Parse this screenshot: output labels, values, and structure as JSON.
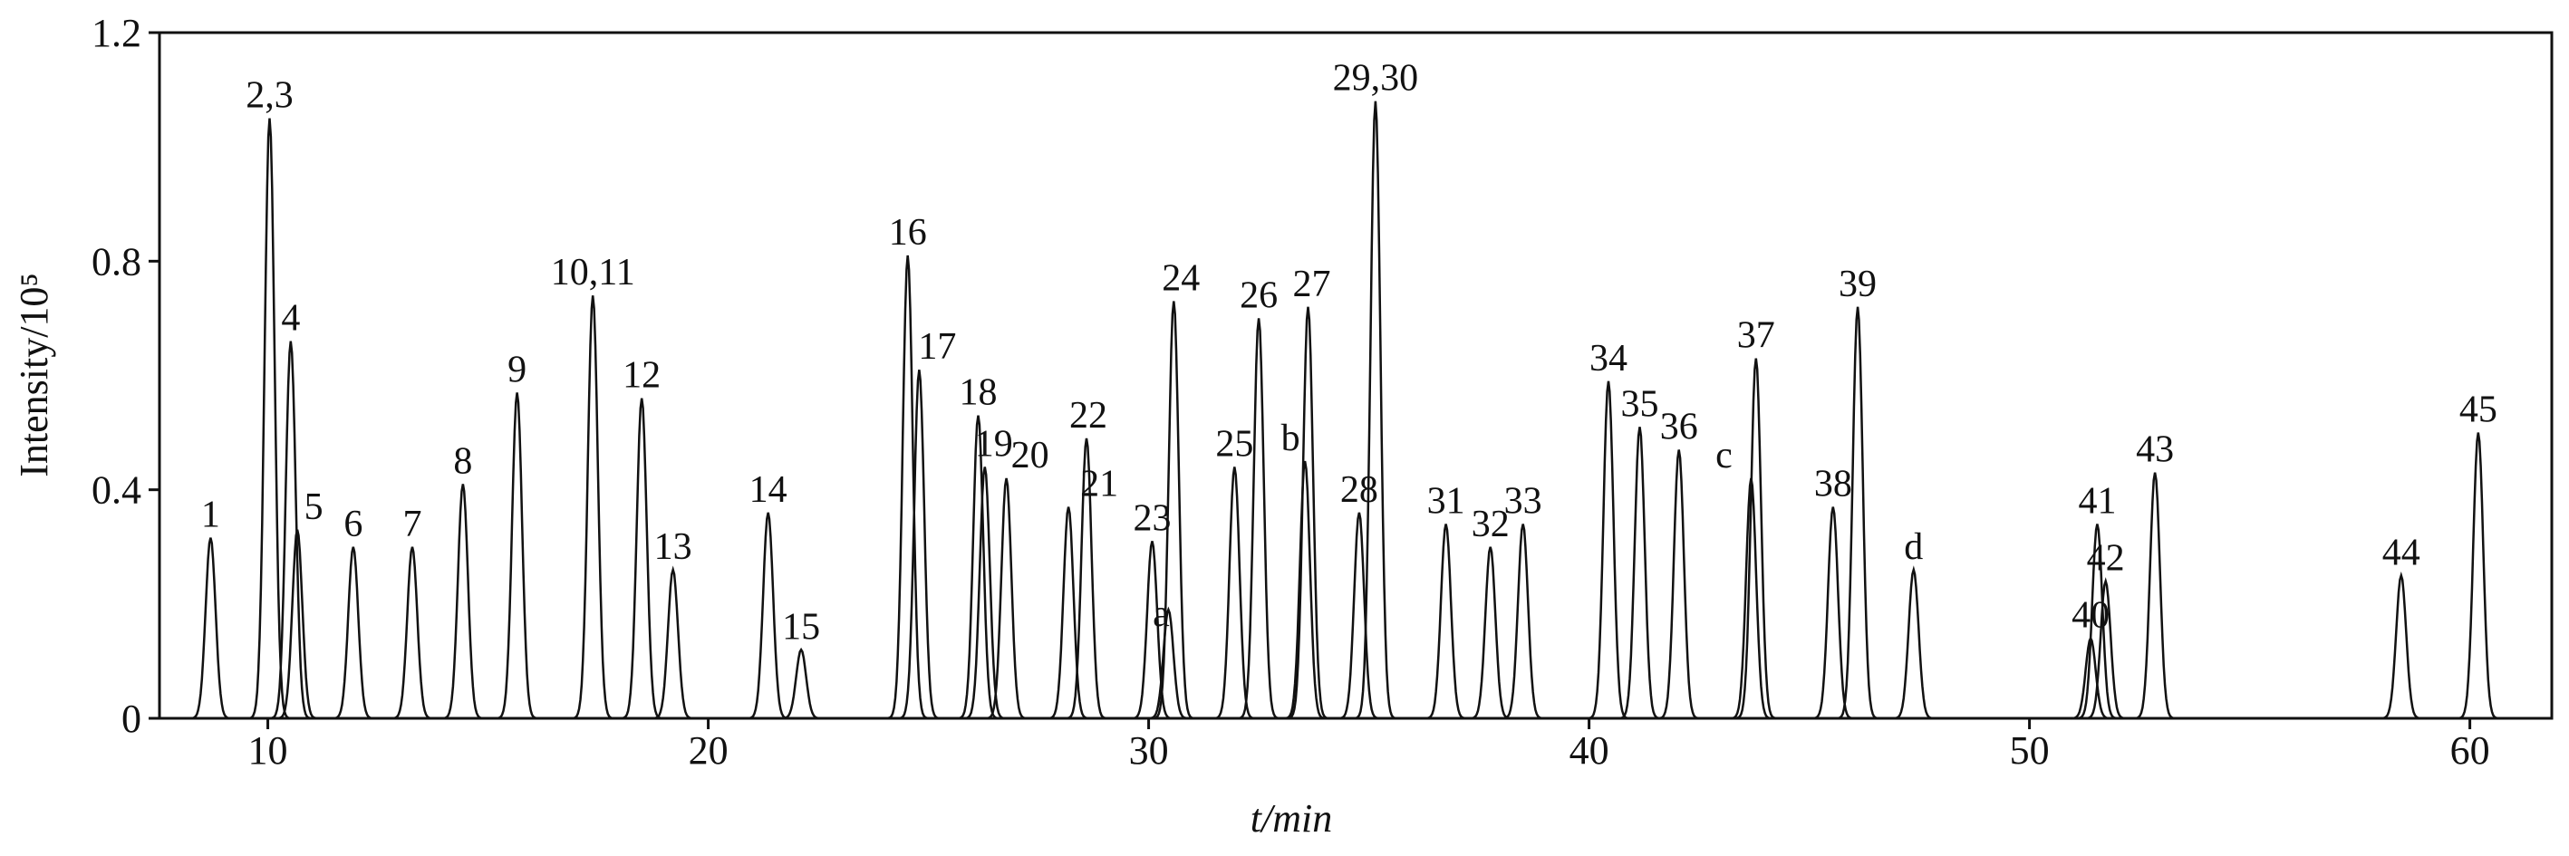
{
  "chart_data": {
    "type": "chromatogram",
    "x_label": "t/min",
    "y_label": "Intensity/10⁵",
    "xlim": [
      7.54,
      61.86
    ],
    "ylim": [
      0,
      1.2
    ],
    "xticks": [
      10,
      20,
      30,
      40,
      50,
      60
    ],
    "yticks": [
      0,
      0.4,
      0.8,
      1.2
    ],
    "color": "#111111",
    "peaks": [
      {
        "label": "1",
        "x": 8.7,
        "y": 0.316
      },
      {
        "label": "2,3",
        "x": 10.04,
        "y": 1.05
      },
      {
        "label": "4",
        "x": 10.52,
        "y": 0.66
      },
      {
        "label": "5",
        "x": 10.67,
        "y": 0.33
      },
      {
        "label": "6",
        "x": 11.94,
        "y": 0.3
      },
      {
        "label": "7",
        "x": 13.28,
        "y": 0.3
      },
      {
        "label": "8",
        "x": 14.43,
        "y": 0.41
      },
      {
        "label": "9",
        "x": 15.66,
        "y": 0.57
      },
      {
        "label": "10,11",
        "x": 17.38,
        "y": 0.74
      },
      {
        "label": "12",
        "x": 18.49,
        "y": 0.56
      },
      {
        "label": "13",
        "x": 19.2,
        "y": 0.26
      },
      {
        "label": "14",
        "x": 21.36,
        "y": 0.36
      },
      {
        "label": "15",
        "x": 22.11,
        "y": 0.12
      },
      {
        "label": "16",
        "x": 24.53,
        "y": 0.81
      },
      {
        "label": "17",
        "x": 24.79,
        "y": 0.61
      },
      {
        "label": "18",
        "x": 26.13,
        "y": 0.53
      },
      {
        "label": "19",
        "x": 26.28,
        "y": 0.44
      },
      {
        "label": "20",
        "x": 26.77,
        "y": 0.42
      },
      {
        "label": "21",
        "x": 28.18,
        "y": 0.37
      },
      {
        "label": "22",
        "x": 28.59,
        "y": 0.49
      },
      {
        "label": "23",
        "x": 30.08,
        "y": 0.31
      },
      {
        "label": "a",
        "x": 30.45,
        "y": 0.19
      },
      {
        "label": "24",
        "x": 30.57,
        "y": 0.73
      },
      {
        "label": "25",
        "x": 31.95,
        "y": 0.44
      },
      {
        "label": "26",
        "x": 32.5,
        "y": 0.7
      },
      {
        "label": "b",
        "x": 33.55,
        "y": 0.45
      },
      {
        "label": "27",
        "x": 33.62,
        "y": 0.72
      },
      {
        "label": "28",
        "x": 34.78,
        "y": 0.36
      },
      {
        "label": "29,30",
        "x": 35.15,
        "y": 1.08
      },
      {
        "label": "31",
        "x": 36.75,
        "y": 0.34
      },
      {
        "label": "32",
        "x": 37.76,
        "y": 0.3
      },
      {
        "label": "33",
        "x": 38.5,
        "y": 0.34
      },
      {
        "label": "34",
        "x": 40.44,
        "y": 0.59
      },
      {
        "label": "35",
        "x": 41.15,
        "y": 0.51
      },
      {
        "label": "36",
        "x": 42.04,
        "y": 0.47
      },
      {
        "label": "c",
        "x": 43.68,
        "y": 0.42
      },
      {
        "label": "37",
        "x": 43.79,
        "y": 0.63
      },
      {
        "label": "38",
        "x": 45.54,
        "y": 0.37
      },
      {
        "label": "39",
        "x": 46.1,
        "y": 0.72
      },
      {
        "label": "d",
        "x": 47.37,
        "y": 0.26
      },
      {
        "label": "40",
        "x": 51.39,
        "y": 0.14
      },
      {
        "label": "41",
        "x": 51.54,
        "y": 0.34
      },
      {
        "label": "42",
        "x": 51.73,
        "y": 0.24
      },
      {
        "label": "43",
        "x": 52.85,
        "y": 0.43
      },
      {
        "label": "44",
        "x": 58.44,
        "y": 0.25
      },
      {
        "label": "45",
        "x": 60.19,
        "y": 0.5
      }
    ]
  }
}
